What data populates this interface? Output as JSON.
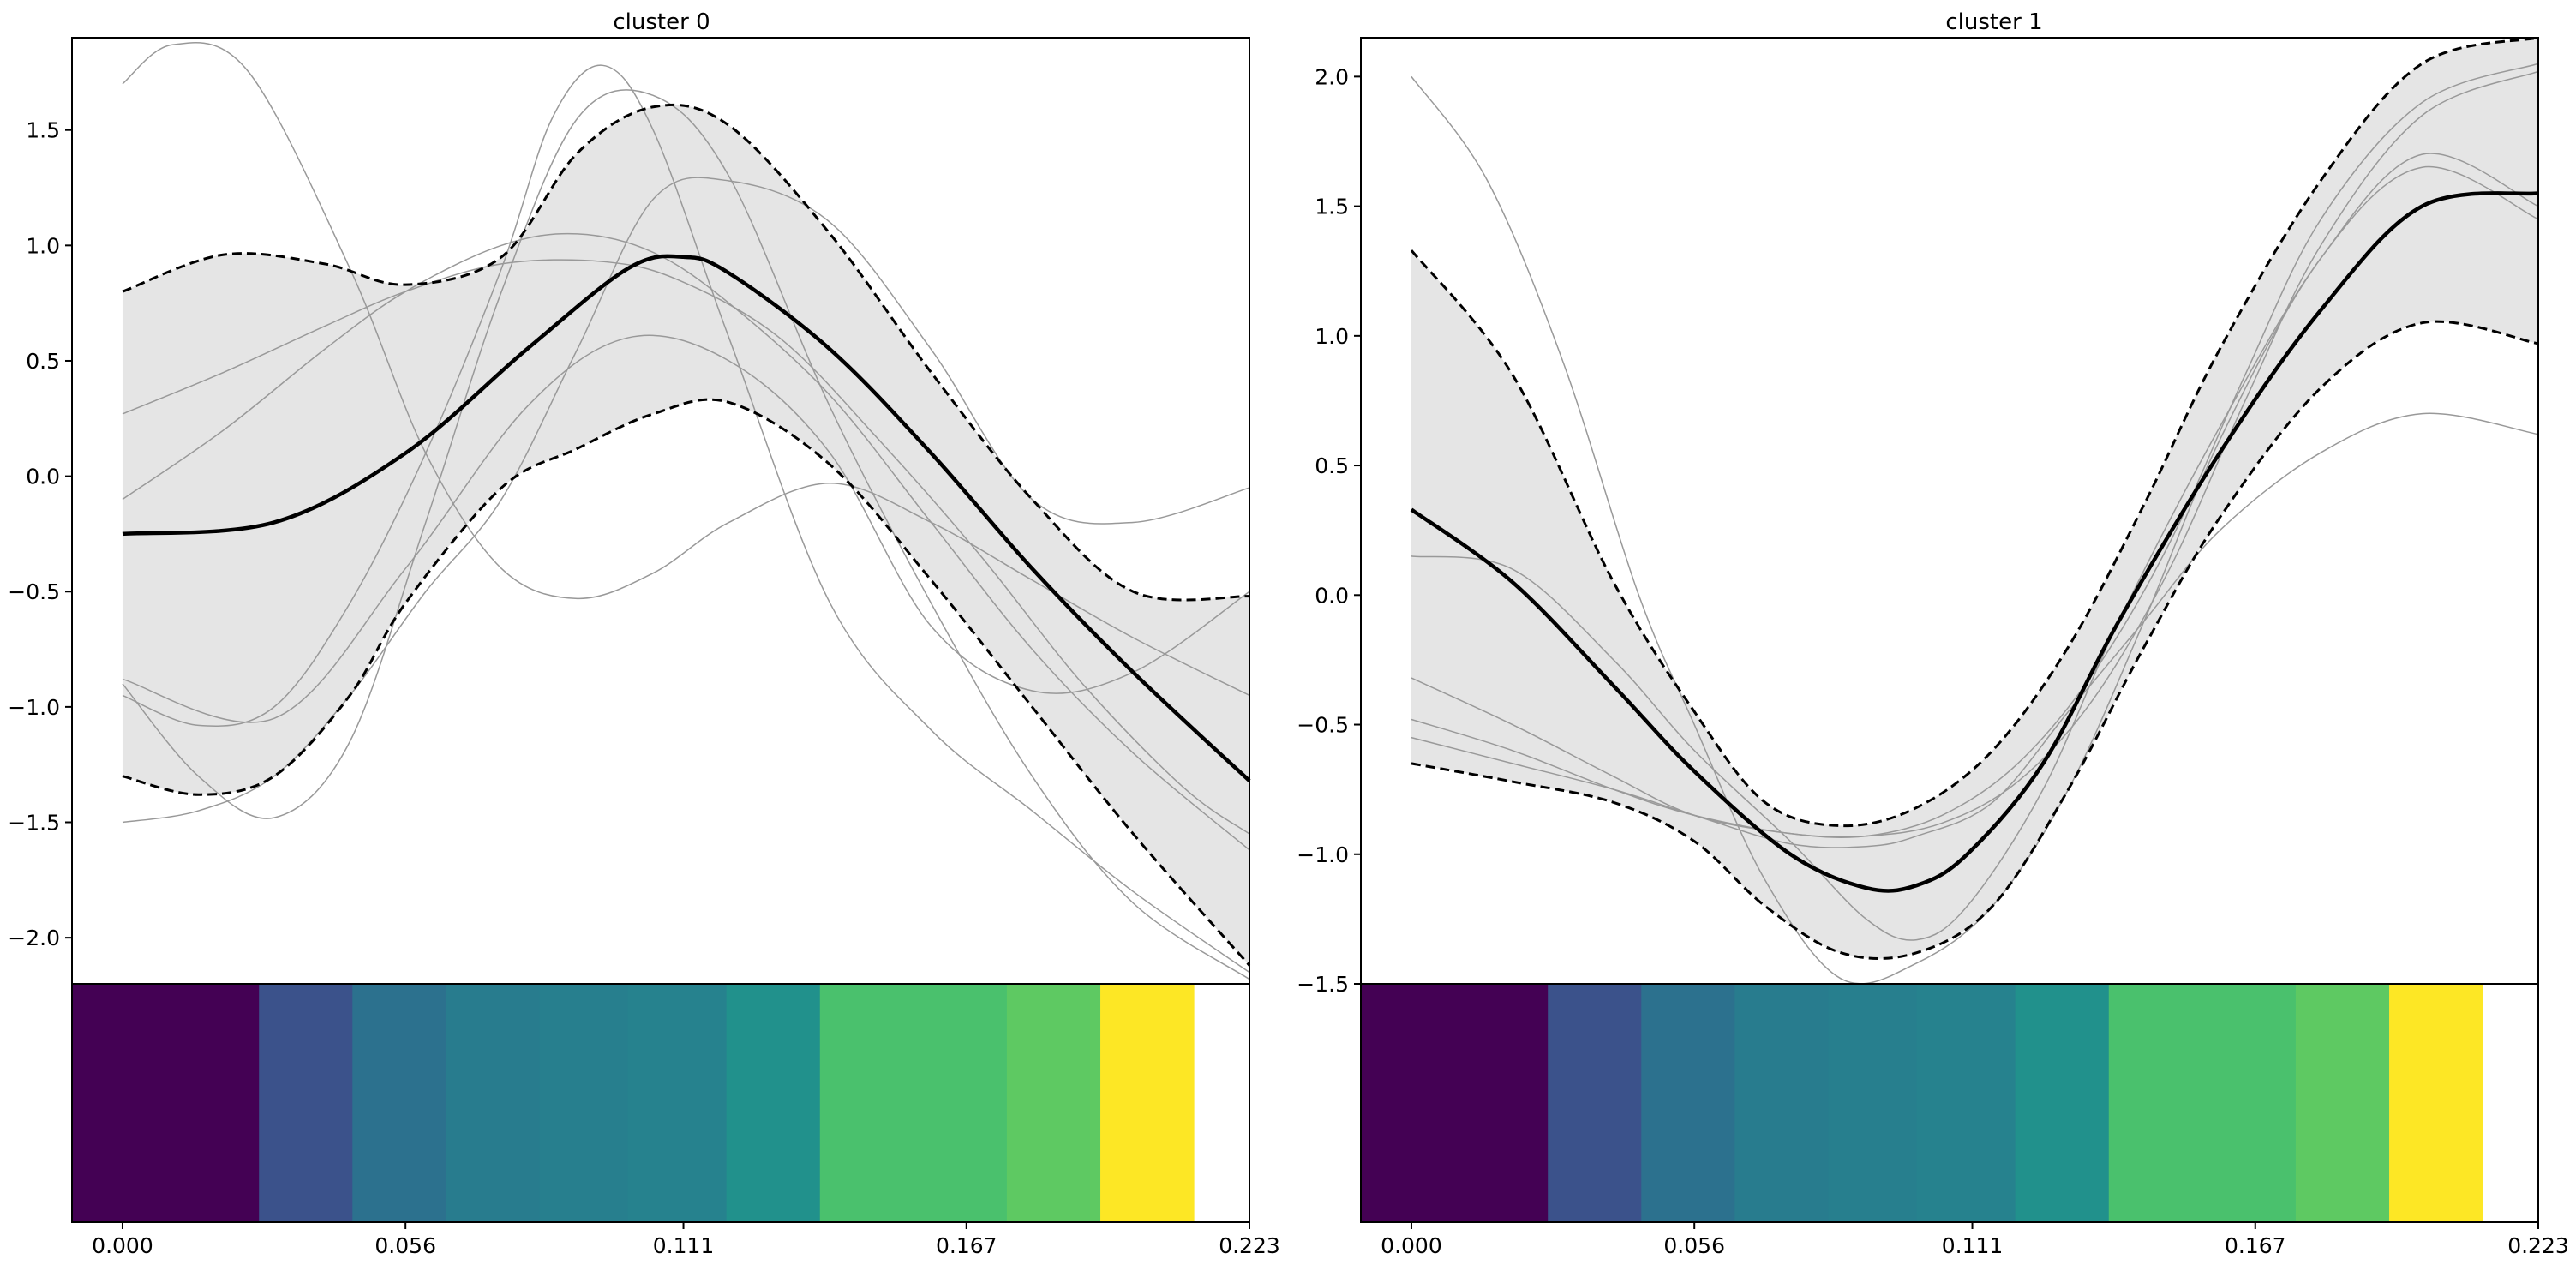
{
  "chart_data": [
    {
      "type": "line",
      "title": "cluster 0",
      "xlabel": "",
      "ylabel": "",
      "ylim": [
        -2.2,
        1.9
      ],
      "yticks": [
        -2.0,
        -1.5,
        -1.0,
        -0.5,
        0.0,
        0.5,
        1.0,
        1.5
      ],
      "ytick_labels": [
        "−2.0",
        "−1.5",
        "−1.0",
        "−0.5",
        "0.0",
        "0.5",
        "1.0",
        "1.5"
      ],
      "grid": false,
      "series": [
        {
          "role": "mean",
          "style": "solid-black-thick",
          "x": [
            0.0,
            0.03,
            0.056,
            0.08,
            0.1,
            0.111,
            0.12,
            0.14,
            0.16,
            0.18,
            0.2,
            0.223
          ],
          "values": [
            -0.25,
            -0.2,
            0.1,
            0.55,
            0.9,
            0.95,
            0.88,
            0.55,
            0.1,
            -0.4,
            -0.85,
            -1.32
          ]
        },
        {
          "role": "upper-band",
          "style": "dashed-black",
          "x": [
            0.0,
            0.02,
            0.04,
            0.056,
            0.075,
            0.09,
            0.105,
            0.12,
            0.14,
            0.16,
            0.18,
            0.2,
            0.223
          ],
          "values": [
            0.8,
            0.96,
            0.92,
            0.83,
            0.95,
            1.4,
            1.6,
            1.52,
            1.05,
            0.45,
            -0.1,
            -0.5,
            -0.52
          ]
        },
        {
          "role": "lower-band",
          "style": "dashed-black",
          "x": [
            0.0,
            0.015,
            0.03,
            0.045,
            0.056,
            0.075,
            0.09,
            0.105,
            0.12,
            0.14,
            0.16,
            0.18,
            0.2,
            0.223
          ],
          "values": [
            -1.3,
            -1.38,
            -1.3,
            -0.95,
            -0.55,
            -0.05,
            0.12,
            0.27,
            0.32,
            0.05,
            -0.45,
            -1.0,
            -1.55,
            -2.12
          ]
        },
        {
          "role": "sample",
          "style": "thin-gray",
          "x": [
            0.0,
            0.01,
            0.025,
            0.045,
            0.06,
            0.075,
            0.09,
            0.105,
            0.12,
            0.14,
            0.16,
            0.18,
            0.2,
            0.223
          ],
          "values": [
            1.7,
            1.87,
            1.75,
            0.9,
            0.1,
            -0.4,
            -0.53,
            -0.42,
            -0.2,
            -0.03,
            -0.2,
            -0.45,
            -0.7,
            -0.95
          ]
        },
        {
          "role": "sample",
          "style": "thin-gray",
          "x": [
            0.0,
            0.02,
            0.04,
            0.056,
            0.075,
            0.095,
            0.11,
            0.13,
            0.15,
            0.17,
            0.19,
            0.21,
            0.223
          ],
          "values": [
            0.27,
            0.45,
            0.65,
            0.8,
            0.92,
            0.93,
            0.85,
            0.6,
            0.15,
            -0.35,
            -0.9,
            -1.35,
            -1.55
          ]
        },
        {
          "role": "sample",
          "style": "thin-gray",
          "x": [
            0.0,
            0.02,
            0.04,
            0.056,
            0.075,
            0.09,
            0.105,
            0.12,
            0.14,
            0.16,
            0.18,
            0.2,
            0.223
          ],
          "values": [
            -0.1,
            0.2,
            0.55,
            0.8,
            1.0,
            1.05,
            0.97,
            0.75,
            0.35,
            -0.2,
            -0.75,
            -1.2,
            -1.62
          ]
        },
        {
          "role": "sample",
          "style": "thin-gray",
          "x": [
            0.0,
            0.015,
            0.03,
            0.045,
            0.06,
            0.075,
            0.09,
            0.105,
            0.12,
            0.14,
            0.16,
            0.18,
            0.2,
            0.223
          ],
          "values": [
            -1.5,
            -1.45,
            -1.3,
            -0.95,
            -0.5,
            -0.1,
            0.55,
            1.2,
            1.28,
            1.1,
            0.55,
            -0.1,
            -0.2,
            -0.05
          ]
        },
        {
          "role": "sample",
          "style": "thin-gray",
          "x": [
            0.0,
            0.015,
            0.03,
            0.045,
            0.06,
            0.075,
            0.09,
            0.105,
            0.12,
            0.14,
            0.16,
            0.18,
            0.2,
            0.223
          ],
          "values": [
            -0.9,
            -1.3,
            -1.48,
            -1.15,
            -0.2,
            0.8,
            1.55,
            1.65,
            1.3,
            0.3,
            -0.55,
            -1.3,
            -1.85,
            -2.18
          ]
        },
        {
          "role": "sample",
          "style": "thin-gray",
          "x": [
            0.0,
            0.015,
            0.03,
            0.045,
            0.06,
            0.075,
            0.085,
            0.095,
            0.105,
            0.12,
            0.14,
            0.16,
            0.18,
            0.2,
            0.223
          ],
          "values": [
            -0.95,
            -1.08,
            -1.0,
            -0.55,
            0.1,
            0.9,
            1.55,
            1.78,
            1.5,
            0.6,
            -0.55,
            -1.1,
            -1.45,
            -1.8,
            -2.15
          ]
        },
        {
          "role": "sample",
          "style": "thin-gray",
          "x": [
            0.0,
            0.03,
            0.056,
            0.08,
            0.1,
            0.12,
            0.14,
            0.16,
            0.18,
            0.2,
            0.223
          ],
          "values": [
            -0.88,
            -1.05,
            -0.4,
            0.3,
            0.6,
            0.5,
            0.1,
            -0.65,
            -0.93,
            -0.85,
            -0.5
          ]
        }
      ],
      "colorbar": {
        "x_tick_labels": [
          "0.000",
          "0.056",
          "0.111",
          "0.167",
          "0.223"
        ],
        "x_ticks": [
          0.0,
          0.056,
          0.111,
          0.167,
          0.223
        ],
        "segments": [
          {
            "x0": -0.01,
            "x1": 0.027,
            "color": "#440154"
          },
          {
            "x0": 0.027,
            "x1": 0.0455,
            "color": "#3b528b"
          },
          {
            "x0": 0.0455,
            "x1": 0.064,
            "color": "#2c718e"
          },
          {
            "x0": 0.064,
            "x1": 0.0825,
            "color": "#287c8e"
          },
          {
            "x0": 0.0825,
            "x1": 0.1,
            "color": "#277f8e"
          },
          {
            "x0": 0.1,
            "x1": 0.1195,
            "color": "#26828e"
          },
          {
            "x0": 0.1195,
            "x1": 0.138,
            "color": "#21918c"
          },
          {
            "x0": 0.138,
            "x1": 0.175,
            "color": "#4ac16d"
          },
          {
            "x0": 0.175,
            "x1": 0.1935,
            "color": "#5ec962"
          },
          {
            "x0": 0.1935,
            "x1": 0.212,
            "color": "#fde725"
          }
        ]
      }
    },
    {
      "type": "line",
      "title": "cluster 1",
      "xlabel": "",
      "ylabel": "",
      "ylim": [
        -1.5,
        2.15
      ],
      "yticks": [
        -1.5,
        -1.0,
        -0.5,
        0.0,
        0.5,
        1.0,
        1.5,
        2.0
      ],
      "ytick_labels": [
        "−1.5",
        "−1.0",
        "−0.5",
        "0.0",
        "0.5",
        "1.0",
        "1.5",
        "2.0"
      ],
      "grid": false,
      "series": [
        {
          "role": "mean",
          "style": "solid-black-thick",
          "x": [
            0.0,
            0.02,
            0.04,
            0.056,
            0.075,
            0.09,
            0.1,
            0.11,
            0.125,
            0.14,
            0.16,
            0.18,
            0.2,
            0.223
          ],
          "values": [
            0.33,
            0.05,
            -0.35,
            -0.68,
            -1.0,
            -1.13,
            -1.12,
            -1.0,
            -0.65,
            -0.1,
            0.55,
            1.1,
            1.5,
            1.55
          ]
        },
        {
          "role": "upper-band",
          "style": "dashed-black",
          "x": [
            0.0,
            0.02,
            0.04,
            0.056,
            0.07,
            0.085,
            0.1,
            0.115,
            0.13,
            0.145,
            0.16,
            0.18,
            0.2,
            0.223
          ],
          "values": [
            1.33,
            0.85,
            0.05,
            -0.45,
            -0.8,
            -0.89,
            -0.82,
            -0.6,
            -0.2,
            0.35,
            0.95,
            1.6,
            2.05,
            2.15
          ]
        },
        {
          "role": "lower-band",
          "style": "dashed-black",
          "x": [
            0.0,
            0.02,
            0.04,
            0.056,
            0.07,
            0.085,
            0.1,
            0.115,
            0.13,
            0.145,
            0.16,
            0.18,
            0.2,
            0.223
          ],
          "values": [
            -0.65,
            -0.72,
            -0.8,
            -0.95,
            -1.2,
            -1.38,
            -1.38,
            -1.2,
            -0.75,
            -0.2,
            0.3,
            0.8,
            1.05,
            0.97
          ]
        },
        {
          "role": "sample",
          "style": "thin-gray",
          "x": [
            0.0,
            0.015,
            0.03,
            0.045,
            0.056,
            0.07,
            0.085,
            0.1,
            0.115,
            0.13,
            0.145,
            0.16,
            0.18,
            0.2,
            0.223
          ],
          "values": [
            2.0,
            1.6,
            0.9,
            0.0,
            -0.5,
            -1.1,
            -1.48,
            -1.42,
            -1.2,
            -0.75,
            -0.1,
            0.6,
            1.3,
            1.65,
            1.45
          ]
        },
        {
          "role": "sample",
          "style": "thin-gray",
          "x": [
            0.0,
            0.02,
            0.04,
            0.056,
            0.075,
            0.09,
            0.1,
            0.11,
            0.125,
            0.14,
            0.16,
            0.18,
            0.2,
            0.223
          ],
          "values": [
            0.15,
            0.1,
            -0.25,
            -0.6,
            -0.95,
            -1.25,
            -1.33,
            -1.2,
            -0.75,
            -0.1,
            0.65,
            1.3,
            1.7,
            1.5
          ]
        },
        {
          "role": "sample",
          "style": "thin-gray",
          "x": [
            0.0,
            0.02,
            0.04,
            0.056,
            0.075,
            0.09,
            0.105,
            0.12,
            0.135,
            0.15,
            0.165,
            0.18,
            0.2,
            0.223
          ],
          "values": [
            -0.32,
            -0.5,
            -0.7,
            -0.85,
            -0.92,
            -0.93,
            -0.85,
            -0.65,
            -0.3,
            0.2,
            0.85,
            1.45,
            1.9,
            2.05
          ]
        },
        {
          "role": "sample",
          "style": "thin-gray",
          "x": [
            0.0,
            0.02,
            0.04,
            0.056,
            0.075,
            0.09,
            0.105,
            0.12,
            0.135,
            0.15,
            0.165,
            0.18,
            0.2,
            0.223
          ],
          "values": [
            -0.48,
            -0.6,
            -0.75,
            -0.85,
            -0.92,
            -0.93,
            -0.88,
            -0.72,
            -0.4,
            0.1,
            0.75,
            1.35,
            1.85,
            2.02
          ]
        },
        {
          "role": "sample",
          "style": "thin-gray",
          "x": [
            0.0,
            0.02,
            0.04,
            0.056,
            0.075,
            0.09,
            0.1,
            0.115,
            0.13,
            0.145,
            0.16,
            0.18,
            0.2,
            0.223
          ],
          "values": [
            -0.55,
            -0.65,
            -0.75,
            -0.85,
            -0.96,
            -0.97,
            -0.93,
            -0.8,
            -0.45,
            -0.1,
            0.25,
            0.55,
            0.7,
            0.62
          ]
        }
      ],
      "colorbar": {
        "x_tick_labels": [
          "0.000",
          "0.056",
          "0.111",
          "0.167",
          "0.223"
        ],
        "x_ticks": [
          0.0,
          0.056,
          0.111,
          0.167,
          0.223
        ],
        "segments": [
          {
            "x0": -0.01,
            "x1": 0.027,
            "color": "#440154"
          },
          {
            "x0": 0.027,
            "x1": 0.0455,
            "color": "#3b528b"
          },
          {
            "x0": 0.0455,
            "x1": 0.064,
            "color": "#2c718e"
          },
          {
            "x0": 0.064,
            "x1": 0.0825,
            "color": "#287c8e"
          },
          {
            "x0": 0.0825,
            "x1": 0.1,
            "color": "#277f8e"
          },
          {
            "x0": 0.1,
            "x1": 0.1195,
            "color": "#26828e"
          },
          {
            "x0": 0.1195,
            "x1": 0.138,
            "color": "#21918c"
          },
          {
            "x0": 0.138,
            "x1": 0.175,
            "color": "#4ac16d"
          },
          {
            "x0": 0.175,
            "x1": 0.1935,
            "color": "#5ec962"
          },
          {
            "x0": 0.1935,
            "x1": 0.212,
            "color": "#fde725"
          }
        ]
      }
    }
  ]
}
